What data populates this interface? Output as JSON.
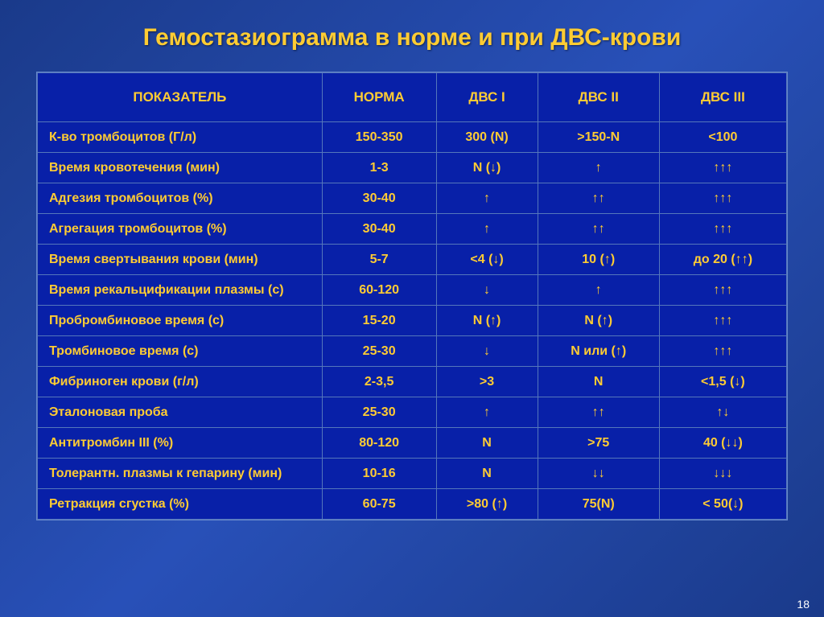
{
  "title": "Гемостазиограмма в норме и при ДВС-крови",
  "columns": [
    "ПОКАЗАТЕЛЬ",
    "НОРМА",
    "ДВС I",
    "ДВС II",
    "ДВС III"
  ],
  "rows": [
    {
      "label": "К-во тромбоцитов (Г/л)",
      "norm": "150-350",
      "dvs1": "300 (N)",
      "dvs2": ">150-N",
      "dvs3": "<100"
    },
    {
      "label": "Время кровотечения (мин)",
      "norm": "1-3",
      "dvs1": "N  (↓)",
      "dvs2": "↑",
      "dvs3": "↑↑↑"
    },
    {
      "label": "Адгезия тромбоцитов (%)",
      "norm": "30-40",
      "dvs1": "↑",
      "dvs2": "↑↑",
      "dvs3": "↑↑↑"
    },
    {
      "label": "Агрегация тромбоцитов (%)",
      "norm": "30-40",
      "dvs1": "↑",
      "dvs2": "↑↑",
      "dvs3": "↑↑↑"
    },
    {
      "label": "Время свертывания крови (мин)",
      "norm": "5-7",
      "dvs1": "<4 (↓)",
      "dvs2": "10 (↑)",
      "dvs3": "до 20 (↑↑)"
    },
    {
      "label": "Время рекальцификации плазмы (с)",
      "norm": "60-120",
      "dvs1": "↓",
      "dvs2": "↑",
      "dvs3": "↑↑↑"
    },
    {
      "label": "Пробромбиновое время (с)",
      "norm": "15-20",
      "dvs1": "N (↑)",
      "dvs2": "N (↑)",
      "dvs3": "↑↑↑"
    },
    {
      "label": "Тромбиновое время (с)",
      "norm": "25-30",
      "dvs1": "↓",
      "dvs2": "N или (↑)",
      "dvs3": "↑↑↑"
    },
    {
      "label": "Фибриноген крови (г/л)",
      "norm": "2-3,5",
      "dvs1": ">3",
      "dvs2": "N",
      "dvs3": "<1,5 (↓)"
    },
    {
      "label": "Эталоновая проба",
      "norm": "25-30",
      "dvs1": "↑",
      "dvs2": "↑↑",
      "dvs3": "↑↓"
    },
    {
      "label": "Антитромбин III (%)",
      "norm": "80-120",
      "dvs1": "N",
      "dvs2": ">75",
      "dvs3": "40 (↓↓)"
    },
    {
      "label": "Толерантн. плазмы к гепарину (мин)",
      "norm": "10-16",
      "dvs1": "N",
      "dvs2": "↓↓",
      "dvs3": "↓↓↓"
    },
    {
      "label": "Ретракция сгустка (%)",
      "norm": "60-75",
      "dvs1": ">80 (↑)",
      "dvs2": "75(N)",
      "dvs3": "< 50(↓)"
    }
  ],
  "page_number": "18",
  "colors": {
    "title": "#ffcc33",
    "cell_text": "#ffcc33",
    "cell_bg": "#0820a8",
    "border": "#5577bb",
    "page_bg_start": "#1a3a8a",
    "page_bg_mid": "#2850b8"
  }
}
